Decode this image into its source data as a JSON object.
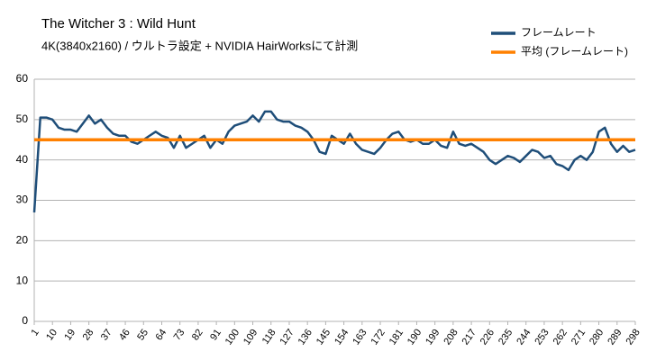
{
  "chart_data": {
    "type": "line",
    "title": "The Witcher 3 : Wild Hunt",
    "subtitle": "4K(3840x2160) / ウルトラ設定 + NVIDIA HairWorksにて計測",
    "xlim": [
      1,
      298
    ],
    "xticks": [
      1,
      10,
      19,
      28,
      37,
      46,
      55,
      64,
      73,
      82,
      91,
      100,
      109,
      118,
      127,
      136,
      145,
      154,
      163,
      172,
      181,
      190,
      199,
      208,
      217,
      226,
      235,
      244,
      253,
      262,
      271,
      280,
      289,
      298
    ],
    "ylim": [
      0,
      60
    ],
    "yticks": [
      0,
      10,
      20,
      30,
      40,
      50,
      60
    ],
    "grid": true,
    "legend": "top-right",
    "series": [
      {
        "name": "フレームレート",
        "color": "#1f4e79",
        "x": [
          1,
          4,
          7,
          10,
          13,
          16,
          19,
          22,
          25,
          28,
          31,
          34,
          37,
          40,
          43,
          46,
          49,
          52,
          55,
          58,
          61,
          64,
          67,
          70,
          73,
          76,
          79,
          82,
          85,
          88,
          91,
          94,
          97,
          100,
          103,
          106,
          109,
          112,
          115,
          118,
          121,
          124,
          127,
          130,
          133,
          136,
          139,
          142,
          145,
          148,
          151,
          154,
          157,
          160,
          163,
          166,
          169,
          172,
          175,
          178,
          181,
          184,
          187,
          190,
          193,
          196,
          199,
          202,
          205,
          208,
          211,
          214,
          217,
          220,
          223,
          226,
          229,
          232,
          235,
          238,
          241,
          244,
          247,
          250,
          253,
          256,
          259,
          262,
          265,
          268,
          271,
          274,
          277,
          280,
          283,
          286,
          289,
          292,
          295,
          298
        ],
        "values": [
          27,
          50.5,
          50.5,
          50,
          48,
          47.5,
          47.5,
          47,
          49,
          51,
          49,
          50,
          48,
          46.5,
          46,
          46,
          44.5,
          44,
          45,
          46,
          47,
          46,
          45.5,
          43,
          46,
          43,
          44,
          45,
          46,
          43,
          45,
          44,
          47,
          48.5,
          49,
          49.5,
          51,
          49.5,
          52,
          52,
          50,
          49.5,
          49.5,
          48.5,
          48,
          47,
          45,
          42,
          41.5,
          46,
          45,
          44,
          46.5,
          44,
          42.5,
          42,
          41.5,
          43,
          45,
          46.5,
          47,
          45,
          44.5,
          45,
          44,
          44,
          45,
          43.5,
          43,
          47,
          44,
          43.5,
          44,
          43,
          42,
          40,
          39,
          40,
          41,
          40.5,
          39.5,
          41,
          42.5,
          42,
          40.5,
          41,
          39,
          38.5,
          37.5,
          40,
          41,
          40,
          42,
          47,
          48,
          44,
          42,
          43.5,
          42,
          42.5
        ]
      },
      {
        "name": "平均 (フレームレート)",
        "color": "#ff8000",
        "x": [
          1,
          298
        ],
        "values": [
          45,
          45
        ]
      }
    ]
  }
}
